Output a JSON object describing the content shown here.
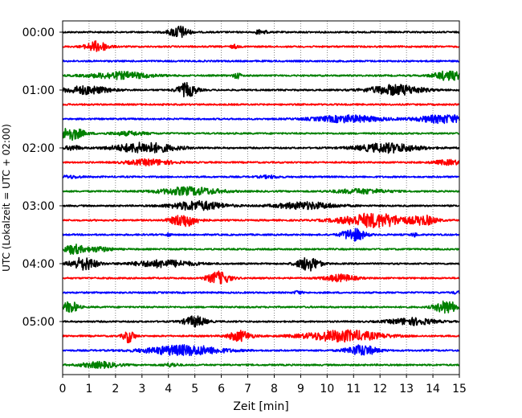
{
  "chart_data": {
    "type": "line",
    "title": "",
    "xlabel": "Zeit  [min]",
    "ylabel": "UTC (Lokalzeit = UTC + 02:00)",
    "xlim": [
      0,
      15
    ],
    "x_ticks": [
      0,
      1,
      2,
      3,
      4,
      5,
      6,
      7,
      8,
      9,
      10,
      11,
      12,
      13,
      14,
      15
    ],
    "x_tick_labels": [
      "0",
      "1",
      "2",
      "3",
      "4",
      "5",
      "6",
      "7",
      "8",
      "9",
      "10",
      "11",
      "12",
      "13",
      "14",
      "15"
    ],
    "y_tick_labels": [
      "00:00",
      "01:00",
      "02:00",
      "03:00",
      "04:00",
      "05:00"
    ],
    "y_tick_rows": [
      0,
      4,
      8,
      12,
      16,
      20
    ],
    "grid": "vertical dotted at each minute",
    "trace_colors": [
      "#000000",
      "#ff0000",
      "#0000ff",
      "#008000"
    ],
    "traces": [
      {
        "start": "00:00",
        "events": [
          {
            "t": 4.4,
            "amp": 0.55,
            "w": 0.25
          },
          {
            "t": 7.4,
            "amp": 0.3,
            "w": 0.05
          },
          {
            "t": 7.7,
            "amp": 0.2,
            "w": 0.05
          }
        ]
      },
      {
        "start": "00:15",
        "events": [
          {
            "t": 1.3,
            "amp": 0.45,
            "w": 0.3
          },
          {
            "t": 6.5,
            "amp": 0.15,
            "w": 0.1
          }
        ]
      },
      {
        "start": "00:30",
        "events": []
      },
      {
        "start": "00:45",
        "events": [
          {
            "t": 2.2,
            "amp": 0.3,
            "w": 0.8
          },
          {
            "t": 6.6,
            "amp": 0.25,
            "w": 0.1
          },
          {
            "t": 14.6,
            "amp": 0.4,
            "w": 0.4
          }
        ]
      },
      {
        "start": "01:00",
        "events": [
          {
            "t": 0.9,
            "amp": 0.35,
            "w": 0.6
          },
          {
            "t": 4.7,
            "amp": 0.6,
            "w": 0.25
          },
          {
            "t": 12.6,
            "amp": 0.45,
            "w": 0.7
          }
        ]
      },
      {
        "start": "01:15",
        "events": []
      },
      {
        "start": "01:30",
        "events": [
          {
            "t": 10.8,
            "amp": 0.3,
            "w": 0.9
          },
          {
            "t": 14.4,
            "amp": 0.35,
            "w": 0.7
          }
        ]
      },
      {
        "start": "01:45",
        "events": [
          {
            "t": 0.3,
            "amp": 0.55,
            "w": 0.35
          },
          {
            "t": 2.5,
            "amp": 0.15,
            "w": 0.5
          }
        ]
      },
      {
        "start": "02:00",
        "events": [
          {
            "t": 0.4,
            "amp": 0.2,
            "w": 0.2
          },
          {
            "t": 3.1,
            "amp": 0.45,
            "w": 0.8
          },
          {
            "t": 12.3,
            "amp": 0.4,
            "w": 0.8
          }
        ]
      },
      {
        "start": "02:15",
        "events": [
          {
            "t": 3.3,
            "amp": 0.25,
            "w": 0.6
          },
          {
            "t": 14.6,
            "amp": 0.2,
            "w": 0.4
          }
        ]
      },
      {
        "start": "02:30",
        "events": [
          {
            "t": 0.3,
            "amp": 0.1,
            "w": 0.3
          },
          {
            "t": 7.8,
            "amp": 0.1,
            "w": 0.3
          }
        ]
      },
      {
        "start": "02:45",
        "events": [
          {
            "t": 4.8,
            "amp": 0.35,
            "w": 0.8
          },
          {
            "t": 11.3,
            "amp": 0.2,
            "w": 0.7
          }
        ]
      },
      {
        "start": "03:00",
        "events": [
          {
            "t": 5.1,
            "amp": 0.4,
            "w": 0.7
          },
          {
            "t": 9.2,
            "amp": 0.3,
            "w": 0.8
          }
        ]
      },
      {
        "start": "03:15",
        "events": [
          {
            "t": 4.6,
            "amp": 0.55,
            "w": 0.35
          },
          {
            "t": 11.8,
            "amp": 0.6,
            "w": 0.9
          },
          {
            "t": 13.7,
            "amp": 0.35,
            "w": 0.3
          }
        ]
      },
      {
        "start": "03:30",
        "events": [
          {
            "t": 4.0,
            "amp": 0.2,
            "w": 0.05
          },
          {
            "t": 11.0,
            "amp": 0.55,
            "w": 0.3
          },
          {
            "t": 13.3,
            "amp": 0.15,
            "w": 0.1
          }
        ]
      },
      {
        "start": "03:45",
        "events": [
          {
            "t": 0.4,
            "amp": 0.4,
            "w": 0.25
          },
          {
            "t": 1.3,
            "amp": 0.2,
            "w": 0.4
          }
        ]
      },
      {
        "start": "04:00",
        "events": [
          {
            "t": 0.8,
            "amp": 0.55,
            "w": 0.35
          },
          {
            "t": 3.8,
            "amp": 0.3,
            "w": 0.8
          },
          {
            "t": 9.3,
            "amp": 0.6,
            "w": 0.3
          }
        ]
      },
      {
        "start": "04:15",
        "events": [
          {
            "t": 5.9,
            "amp": 0.55,
            "w": 0.3
          },
          {
            "t": 10.5,
            "amp": 0.3,
            "w": 0.4
          }
        ]
      },
      {
        "start": "04:30",
        "events": [
          {
            "t": 8.9,
            "amp": 0.15,
            "w": 0.1
          },
          {
            "t": 14.9,
            "amp": 0.1,
            "w": 0.1
          }
        ]
      },
      {
        "start": "04:45",
        "events": [
          {
            "t": 0.3,
            "amp": 0.5,
            "w": 0.2
          },
          {
            "t": 14.5,
            "amp": 0.55,
            "w": 0.3
          }
        ]
      },
      {
        "start": "05:00",
        "events": [
          {
            "t": 5.0,
            "amp": 0.45,
            "w": 0.3
          },
          {
            "t": 13.2,
            "amp": 0.3,
            "w": 0.6
          }
        ]
      },
      {
        "start": "05:15",
        "events": [
          {
            "t": 2.5,
            "amp": 0.55,
            "w": 0.15
          },
          {
            "t": 6.7,
            "amp": 0.45,
            "w": 0.3
          },
          {
            "t": 10.6,
            "amp": 0.5,
            "w": 1.0
          }
        ]
      },
      {
        "start": "05:30",
        "events": [
          {
            "t": 4.6,
            "amp": 0.45,
            "w": 1.0
          },
          {
            "t": 11.3,
            "amp": 0.45,
            "w": 0.4
          }
        ]
      },
      {
        "start": "05:45",
        "events": [
          {
            "t": 1.4,
            "amp": 0.25,
            "w": 0.5
          },
          {
            "t": 4.1,
            "amp": 0.15,
            "w": 0.2
          }
        ]
      }
    ]
  }
}
